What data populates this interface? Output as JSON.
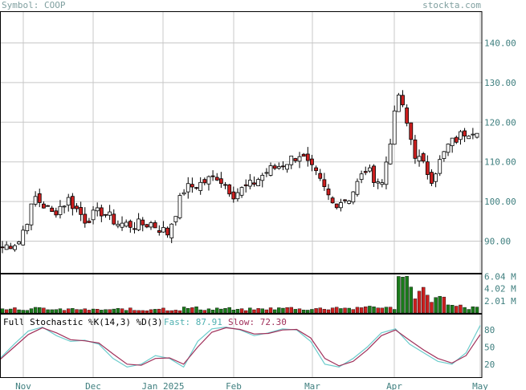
{
  "header": {
    "symbol_label": "Symbol: COOP",
    "brand": "stockta.com"
  },
  "colors": {
    "up": "#ffffff",
    "down": "#cc1f1f",
    "vol_up": "#1a7a1a",
    "vol_down": "#cc1f1f",
    "axis_text": "#3f7f7f",
    "grid": "#c8c8c8",
    "k_line": "#6ccccc",
    "d_line": "#a0305a"
  },
  "chart_data": [
    {
      "type": "candlestick",
      "title": "",
      "y_ticks": [
        90,
        100,
        110,
        120,
        130,
        140
      ],
      "y_tick_labels": [
        "90.00",
        "100.00",
        "110.00",
        "120.00",
        "130.00",
        "140.00"
      ],
      "ylim": [
        82,
        148
      ],
      "x_labels": [
        "Nov",
        "Dec",
        "Jan 2025",
        "Feb",
        "Mar",
        "Apr",
        "May"
      ],
      "grid": true,
      "weekly_closes": [
        88.5,
        90.0,
        101.0,
        97.0,
        100.5,
        95.5,
        97.5,
        94.5,
        94.0,
        94.5,
        92.0,
        103.0,
        104.5,
        106.5,
        102.0,
        104.0,
        107.5,
        109.5,
        112.0,
        106.5,
        99.5,
        101.0,
        108.0,
        104.5,
        127.0,
        112.0,
        106.0,
        114.0,
        117.5,
        119.0
      ]
    },
    {
      "type": "bar",
      "title": "",
      "y_tick_labels": [
        "6.04 M",
        "4.02 M",
        "2.01 M"
      ],
      "ylim": [
        0,
        6.5
      ],
      "volume_millions": [
        0.9,
        0.7,
        0.8,
        0.6,
        0.7,
        0.6,
        0.6,
        0.7,
        0.5,
        0.8,
        0.6,
        0.9,
        0.7,
        0.8,
        0.6,
        0.7,
        0.8,
        0.9,
        0.7,
        0.8,
        1.0,
        0.8,
        1.2,
        0.9,
        6.04,
        3.8,
        2.6,
        1.2,
        0.9,
        0.8
      ],
      "volume_up": [
        true,
        true,
        true,
        false,
        true,
        false,
        true,
        false,
        false,
        true,
        false,
        true,
        true,
        true,
        false,
        true,
        true,
        true,
        true,
        false,
        false,
        true,
        true,
        false,
        true,
        false,
        false,
        true,
        true,
        true
      ]
    },
    {
      "type": "line",
      "title": "Full Stochastic %K(14,3) %D(3)",
      "legend": {
        "fast_label": "Fast: 87.91",
        "slow_label": "Slow: 72.30"
      },
      "y_ticks": [
        20,
        50,
        80
      ],
      "ylim": [
        0,
        100
      ],
      "k_values": [
        30,
        55,
        78,
        85,
        70,
        60,
        62,
        55,
        30,
        15,
        20,
        35,
        30,
        15,
        60,
        82,
        85,
        80,
        70,
        75,
        82,
        80,
        60,
        20,
        15,
        30,
        50,
        75,
        82,
        55,
        40,
        25,
        20,
        40,
        88
      ],
      "d_values": [
        28,
        50,
        72,
        84,
        75,
        63,
        61,
        57,
        38,
        20,
        18,
        30,
        31,
        20,
        50,
        76,
        84,
        81,
        73,
        74,
        80,
        81,
        66,
        30,
        17,
        25,
        45,
        70,
        80,
        62,
        45,
        30,
        22,
        35,
        72
      ]
    }
  ]
}
